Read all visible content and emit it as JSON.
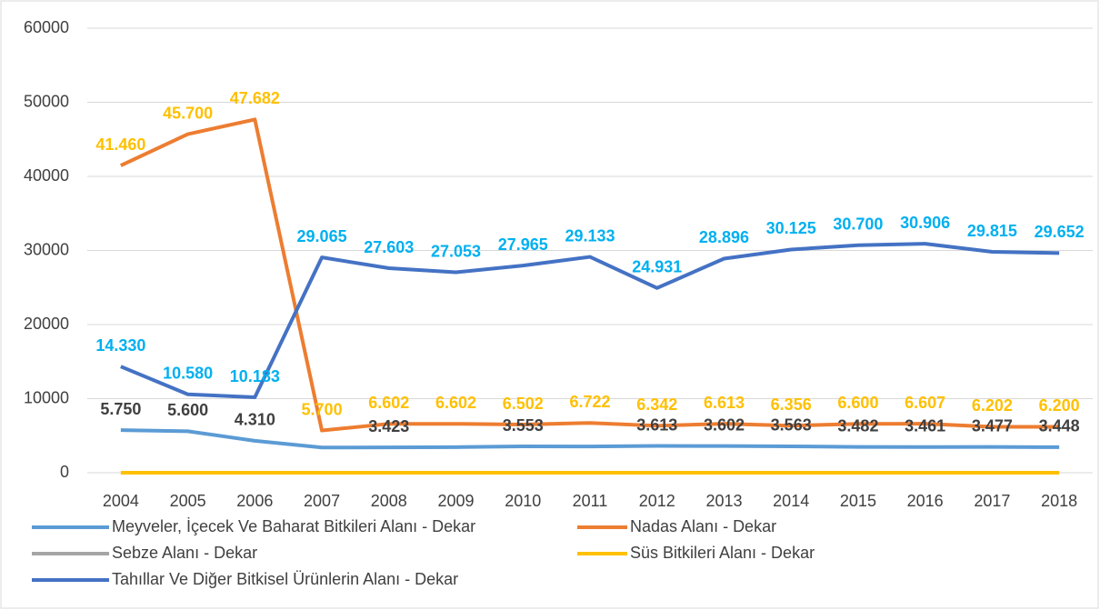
{
  "chart_data": {
    "type": "line",
    "categories": [
      "2004",
      "2005",
      "2006",
      "2007",
      "2008",
      "2009",
      "2010",
      "2011",
      "2012",
      "2013",
      "2014",
      "2015",
      "2016",
      "2017",
      "2018"
    ],
    "ylim": [
      0,
      60000
    ],
    "yticks": [
      0,
      10000,
      20000,
      30000,
      40000,
      50000,
      60000
    ],
    "grid": true,
    "legend": "bottom",
    "series": [
      {
        "name": "Meyveler, İçecek Ve Baharat Bitkileri Alanı - Dekar",
        "color": "#5b9bd5",
        "label_color": "#404040",
        "values": [
          5750,
          5600,
          4310,
          3400,
          3423,
          3450,
          3553,
          3550,
          3613,
          3602,
          3563,
          3482,
          3461,
          3477,
          3448
        ],
        "value_labels": [
          "5.750",
          "5.600",
          "4.310",
          null,
          "3.423",
          null,
          "3.553",
          null,
          "3.613",
          "3.602",
          "3.563",
          "3.482",
          "3.461",
          "3.477",
          "3.448"
        ]
      },
      {
        "name": "Nadas Alanı - Dekar",
        "color": "#ed7d31",
        "label_color": "#ffc000",
        "values": [
          41460,
          45700,
          47682,
          5700,
          6602,
          6602,
          6502,
          6722,
          6342,
          6613,
          6356,
          6600,
          6607,
          6202,
          6200
        ],
        "value_labels": [
          "41.460",
          "45.700",
          "47.682",
          "5.700",
          "6.602",
          "6.602",
          "6.502",
          "6.722",
          "6.342",
          "6.613",
          "6.356",
          "6.600",
          "6.607",
          "6.202",
          "6.200"
        ]
      },
      {
        "name": "Sebze Alanı - Dekar",
        "color": "#a5a5a5",
        "values": [
          null,
          null,
          null,
          null,
          null,
          null,
          null,
          null,
          null,
          null,
          null,
          null,
          null,
          null,
          null
        ]
      },
      {
        "name": "Süs Bitkileri Alanı - Dekar",
        "color": "#ffc000",
        "values": [
          0,
          0,
          0,
          0,
          0,
          0,
          0,
          0,
          0,
          0,
          0,
          0,
          0,
          0,
          0
        ]
      },
      {
        "name": "Tahıllar Ve Diğer Bitkisel Ürünlerin Alanı - Dekar",
        "color": "#4472c4",
        "label_color": "#00b0f0",
        "values": [
          14330,
          10580,
          10183,
          29065,
          27603,
          27053,
          27965,
          29133,
          24931,
          28896,
          30125,
          30700,
          30906,
          29815,
          29652
        ],
        "value_labels": [
          "14.330",
          "10.580",
          "10.183",
          "29.065",
          "27.603",
          "27.053",
          "27.965",
          "29.133",
          "24.931",
          "28.896",
          "30.125",
          "30.700",
          "30.906",
          "29.815",
          "29.652"
        ]
      }
    ]
  }
}
